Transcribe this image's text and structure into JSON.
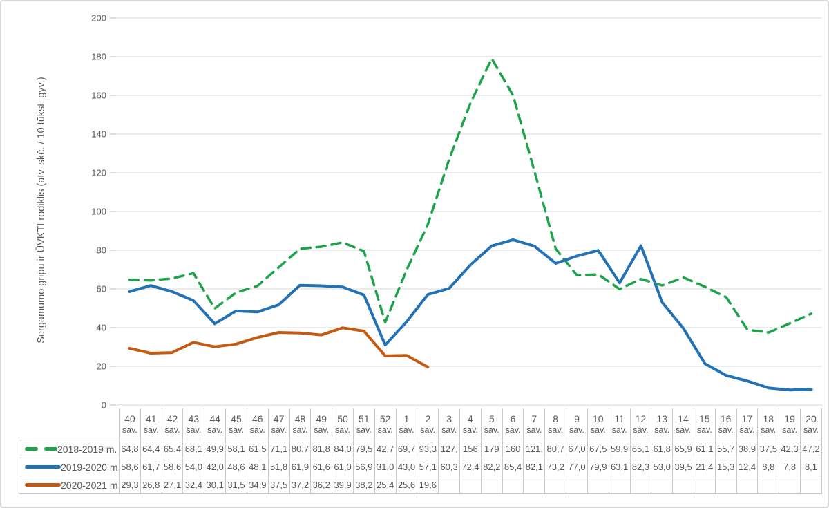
{
  "chart_data": {
    "type": "line",
    "title": "",
    "ylabel": "Sergamumo gripu ir ŪVKTI rodiklis (atv. skč. / 10 tūkst. gyv.)",
    "xlabel": "",
    "ylim": [
      0,
      200
    ],
    "ytick_step": 20,
    "ytick_labels": [
      "0",
      "20",
      "40",
      "60",
      "80",
      "100",
      "120",
      "140",
      "160",
      "180",
      "200"
    ],
    "grid": "horizontal",
    "legend_position": "table-left-column",
    "week_label_suffix": "sav.",
    "categories": [
      "40",
      "41",
      "42",
      "43",
      "44",
      "45",
      "46",
      "47",
      "48",
      "49",
      "50",
      "51",
      "52",
      "1",
      "2",
      "3",
      "4",
      "5",
      "6",
      "7",
      "8",
      "9",
      "10",
      "11",
      "12",
      "13",
      "14",
      "15",
      "16",
      "17",
      "18",
      "19",
      "20"
    ],
    "series": [
      {
        "name": "2018-2019 m.",
        "color": "#1FA34A",
        "line_style": "dashed",
        "values": [
          64.8,
          64.4,
          65.4,
          68.1,
          49.9,
          58.1,
          61.5,
          71.1,
          80.7,
          81.8,
          84.0,
          79.5,
          42.7,
          69.7,
          93.3,
          127,
          156,
          179,
          160,
          121,
          80.7,
          67.0,
          67.5,
          59.9,
          65.1,
          61.8,
          65.9,
          61.1,
          55.7,
          38.9,
          37.5,
          42.3,
          47.2
        ],
        "display": [
          "64,8",
          "64,4",
          "65,4",
          "68,1",
          "49,9",
          "58,1",
          "61,5",
          "71,1",
          "80,7",
          "81,8",
          "84,0",
          "79,5",
          "42,7",
          "69,7",
          "93,3",
          "127,",
          "156",
          "179",
          "160",
          "121,",
          "80,7",
          "67,0",
          "67,5",
          "59,9",
          "65,1",
          "61,8",
          "65,9",
          "61,1",
          "55,7",
          "38,9",
          "37,5",
          "42,3",
          "47,2"
        ]
      },
      {
        "name": "2019-2020 m.",
        "color": "#2272B5",
        "line_style": "solid",
        "values": [
          58.6,
          61.7,
          58.6,
          54.0,
          42.0,
          48.6,
          48.1,
          51.8,
          61.9,
          61.6,
          61.0,
          56.9,
          31.0,
          43.0,
          57.1,
          60.3,
          72.4,
          82.2,
          85.4,
          82.1,
          73.2,
          77.0,
          79.9,
          63.1,
          82.3,
          53.0,
          39.5,
          21.4,
          15.3,
          12.4,
          8.8,
          7.8,
          8.1
        ],
        "display": [
          "58,6",
          "61,7",
          "58,6",
          "54,0",
          "42,0",
          "48,6",
          "48,1",
          "51,8",
          "61,9",
          "61,6",
          "61,0",
          "56,9",
          "31,0",
          "43,0",
          "57,1",
          "60,3",
          "72,4",
          "82,2",
          "85,4",
          "82,1",
          "73,2",
          "77,0",
          "79,9",
          "63,1",
          "82,3",
          "53,0",
          "39,5",
          "21,4",
          "15,3",
          "12,4",
          "8,8",
          "7,8",
          "8,1"
        ],
        "note": ""
      },
      {
        "name": "2020-2021 m.",
        "color": "#C45A11",
        "line_style": "solid",
        "values": [
          29.3,
          26.8,
          27.1,
          32.4,
          30.1,
          31.5,
          34.9,
          37.5,
          37.2,
          36.2,
          39.9,
          38.2,
          25.4,
          25.6,
          19.6,
          null,
          null,
          null,
          null,
          null,
          null,
          null,
          null,
          null,
          null,
          null,
          null,
          null,
          null,
          null,
          null,
          null,
          null
        ],
        "display": [
          "29,3",
          "26,8",
          "27,1",
          "32,4",
          "30,1",
          "31,5",
          "34,9",
          "37,5",
          "37,2",
          "36,2",
          "39,9",
          "38,2",
          "25,4",
          "25,6",
          "19,6",
          "",
          "",
          "",
          "",
          "",
          "",
          "",
          "",
          "",
          "",
          "",
          "",
          "",
          "",
          "",
          "",
          "",
          ""
        ]
      }
    ],
    "colors": {
      "gridline": "#D9D9D9",
      "tick_mark": "#BFBFBF",
      "text": "#595959",
      "table_border": "#C9C9C9"
    }
  }
}
